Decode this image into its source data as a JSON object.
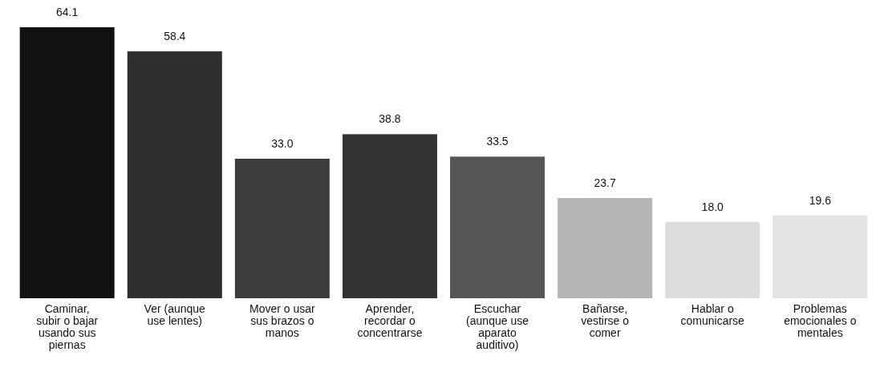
{
  "chart_data": {
    "type": "bar",
    "categories": [
      "Caminar, subir o bajar usando sus piernas",
      "Ver (aunque use lentes)",
      "Mover o usar sus brazos o manos",
      "Aprender, recordar o concentrarse",
      "Escuchar (aunque use aparato auditivo)",
      "Bañarse, vestirse o comer",
      "Hablar o comunicarse",
      "Problemas emocionales o mentales"
    ],
    "values": [
      64.1,
      58.4,
      33.0,
      38.8,
      33.5,
      23.7,
      18.0,
      19.6
    ],
    "colors": [
      "#111111",
      "#2e2e2e",
      "#3c3c3c",
      "#333333",
      "#555555",
      "#b4b4b4",
      "#dcdcdc",
      "#e4e4e4"
    ],
    "value_labels": [
      "64.1",
      "58.4",
      "33.0",
      "38.8",
      "33.5",
      "23.7",
      "18.0",
      "19.6"
    ]
  }
}
